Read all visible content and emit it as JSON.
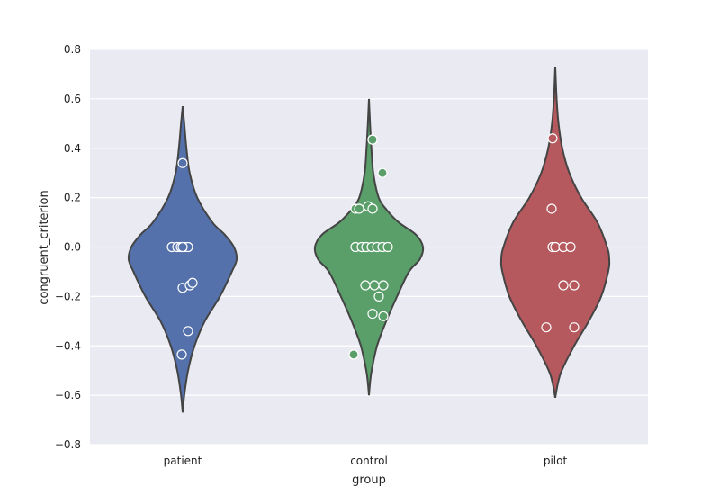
{
  "chart_data": {
    "type": "violin",
    "title": "",
    "xlabel": "group",
    "ylabel": "congruent_criterion",
    "categories": [
      "patient",
      "control",
      "pilot"
    ],
    "ylim": [
      -0.8,
      0.8
    ],
    "yticks": [
      -0.8,
      -0.6,
      -0.4,
      -0.2,
      0.0,
      0.2,
      0.4,
      0.6,
      0.8
    ],
    "ytick_labels": [
      "−0.8",
      "−0.6",
      "−0.4",
      "−0.2",
      "0.0",
      "0.2",
      "0.4",
      "0.6",
      "0.8"
    ],
    "grid": true,
    "background": "#EAEAF2",
    "violins": [
      {
        "category": "patient",
        "color": "#5471AB",
        "y_min": -0.67,
        "y_max": 0.57,
        "profile": [
          [
            -0.67,
            0.0
          ],
          [
            -0.6,
            0.03
          ],
          [
            -0.5,
            0.1
          ],
          [
            -0.4,
            0.22
          ],
          [
            -0.3,
            0.41
          ],
          [
            -0.2,
            0.69
          ],
          [
            -0.1,
            0.91
          ],
          [
            -0.05,
            1.0
          ],
          [
            0.0,
            0.95
          ],
          [
            0.05,
            0.78
          ],
          [
            0.1,
            0.55
          ],
          [
            0.2,
            0.27
          ],
          [
            0.3,
            0.13
          ],
          [
            0.4,
            0.07
          ],
          [
            0.5,
            0.03
          ],
          [
            0.57,
            0.0
          ]
        ],
        "points": [
          {
            "x": -0.12,
            "y": 0.0
          },
          {
            "x": -0.06,
            "y": 0.0
          },
          {
            "x": -0.02,
            "y": 0.0
          },
          {
            "x": 0.02,
            "y": 0.0
          },
          {
            "x": 0.06,
            "y": 0.0
          },
          {
            "x": 0.0,
            "y": 0.0
          },
          {
            "x": 0.0,
            "y": 0.34
          },
          {
            "x": 0.0,
            "y": -0.165
          },
          {
            "x": 0.08,
            "y": -0.155
          },
          {
            "x": 0.11,
            "y": -0.145
          },
          {
            "x": 0.06,
            "y": -0.34
          },
          {
            "x": -0.01,
            "y": -0.435
          }
        ]
      },
      {
        "category": "control",
        "color": "#5A9E6A",
        "y_min": -0.6,
        "y_max": 0.6,
        "profile": [
          [
            -0.6,
            0.0
          ],
          [
            -0.55,
            0.02
          ],
          [
            -0.5,
            0.05
          ],
          [
            -0.4,
            0.15
          ],
          [
            -0.3,
            0.32
          ],
          [
            -0.2,
            0.52
          ],
          [
            -0.1,
            0.74
          ],
          [
            -0.05,
            0.94
          ],
          [
            0.0,
            1.0
          ],
          [
            0.05,
            0.87
          ],
          [
            0.1,
            0.55
          ],
          [
            0.15,
            0.33
          ],
          [
            0.2,
            0.18
          ],
          [
            0.3,
            0.08
          ],
          [
            0.4,
            0.045
          ],
          [
            0.5,
            0.02
          ],
          [
            0.6,
            0.0
          ]
        ],
        "points": [
          {
            "x": -0.15,
            "y": 0.155
          },
          {
            "x": -0.11,
            "y": 0.155
          },
          {
            "x": -0.01,
            "y": 0.165
          },
          {
            "x": 0.04,
            "y": 0.155
          },
          {
            "x": 0.04,
            "y": 0.435
          },
          {
            "x": -0.15,
            "y": 0.0
          },
          {
            "x": -0.08,
            "y": 0.0
          },
          {
            "x": -0.03,
            "y": 0.0
          },
          {
            "x": 0.03,
            "y": 0.0
          },
          {
            "x": 0.09,
            "y": 0.0
          },
          {
            "x": 0.15,
            "y": 0.0
          },
          {
            "x": 0.21,
            "y": 0.0
          },
          {
            "x": -0.04,
            "y": -0.155
          },
          {
            "x": 0.06,
            "y": -0.155
          },
          {
            "x": 0.16,
            "y": -0.155
          },
          {
            "x": 0.11,
            "y": -0.2
          },
          {
            "x": 0.04,
            "y": -0.27
          },
          {
            "x": 0.16,
            "y": -0.28
          }
        ]
      },
      {
        "category": "pilot",
        "color": "#B6595E",
        "y_min": -0.61,
        "y_max": 0.73,
        "profile": [
          [
            -0.61,
            0.0
          ],
          [
            -0.55,
            0.05
          ],
          [
            -0.5,
            0.12
          ],
          [
            -0.4,
            0.35
          ],
          [
            -0.3,
            0.62
          ],
          [
            -0.2,
            0.85
          ],
          [
            -0.1,
            0.98
          ],
          [
            -0.05,
            1.0
          ],
          [
            0.0,
            0.96
          ],
          [
            0.1,
            0.78
          ],
          [
            0.2,
            0.48
          ],
          [
            0.3,
            0.26
          ],
          [
            0.4,
            0.13
          ],
          [
            0.5,
            0.06
          ],
          [
            0.6,
            0.025
          ],
          [
            0.73,
            0.0
          ]
        ],
        "points": [
          {
            "x": -0.03,
            "y": 0.0
          },
          {
            "x": 0.0,
            "y": 0.0
          },
          {
            "x": 0.09,
            "y": 0.0
          },
          {
            "x": 0.17,
            "y": 0.0
          },
          {
            "x": -0.04,
            "y": 0.155
          },
          {
            "x": 0.09,
            "y": -0.155
          },
          {
            "x": 0.21,
            "y": -0.155
          },
          {
            "x": -0.1,
            "y": -0.325
          },
          {
            "x": 0.21,
            "y": -0.325
          }
        ]
      }
    ],
    "colored_points": [
      {
        "category": "control",
        "x": 0.04,
        "y": 0.435,
        "color": "#5A9E6A"
      },
      {
        "category": "control",
        "x": 0.15,
        "y": 0.3,
        "color": "#5A9E6A"
      },
      {
        "category": "control",
        "x": -0.17,
        "y": -0.435,
        "color": "#5A9E6A"
      },
      {
        "category": "pilot",
        "x": -0.03,
        "y": 0.44,
        "color": "#B6595E"
      }
    ]
  }
}
